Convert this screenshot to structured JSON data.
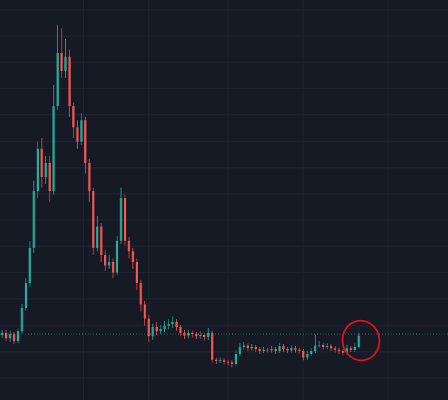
{
  "chart_data": {
    "type": "candlestick",
    "up_color": "#26a69a",
    "down_color": "#ef5350",
    "ylim": [
      0,
      565
    ],
    "open": [
      92,
      95,
      87,
      93,
      83,
      97,
      130,
      165,
      215,
      295,
      355,
      315,
      335,
      295,
      415,
      490,
      465,
      485,
      415,
      385,
      365,
      395,
      335,
      295,
      215,
      245,
      205,
      190,
      195,
      180,
      225,
      285,
      225,
      210,
      195,
      165,
      135,
      115,
      90,
      103,
      97,
      100,
      105,
      107,
      110,
      103,
      95,
      91,
      95,
      93,
      90,
      92,
      89,
      95,
      57,
      55,
      56,
      54,
      53,
      51,
      65,
      75,
      77,
      73,
      75,
      72,
      69,
      71,
      70,
      72,
      69,
      76,
      72,
      70,
      73,
      71,
      69,
      60,
      65,
      69,
      77,
      78,
      75,
      76,
      73,
      71,
      69,
      67,
      73,
      71,
      75
    ],
    "high": [
      99,
      99,
      97,
      96,
      101,
      136,
      172,
      225,
      310,
      365,
      370,
      345,
      345,
      445,
      530,
      525,
      510,
      495,
      420,
      395,
      405,
      400,
      340,
      300,
      260,
      250,
      212,
      205,
      200,
      232,
      300,
      290,
      230,
      215,
      200,
      170,
      140,
      120,
      108,
      110,
      106,
      112,
      114,
      118,
      114,
      106,
      99,
      99,
      98,
      96,
      97,
      95,
      102,
      98,
      60,
      60,
      59,
      57,
      56,
      70,
      80,
      82,
      80,
      79,
      78,
      75,
      75,
      74,
      76,
      75,
      81,
      79,
      75,
      77,
      76,
      74,
      72,
      69,
      73,
      92,
      83,
      81,
      80,
      79,
      76,
      74,
      72,
      78,
      76,
      80,
      95
    ],
    "low": [
      88,
      83,
      82,
      79,
      80,
      94,
      126,
      160,
      208,
      285,
      300,
      305,
      280,
      290,
      410,
      455,
      455,
      400,
      370,
      355,
      360,
      320,
      280,
      205,
      210,
      195,
      182,
      185,
      172,
      176,
      220,
      218,
      200,
      185,
      155,
      125,
      105,
      82,
      85,
      92,
      93,
      96,
      100,
      102,
      98,
      90,
      86,
      87,
      88,
      86,
      86,
      84,
      85,
      53,
      51,
      52,
      50,
      49,
      46,
      48,
      62,
      71,
      69,
      70,
      68,
      65,
      66,
      67,
      67,
      65,
      66,
      68,
      66,
      67,
      67,
      65,
      56,
      57,
      62,
      66,
      74,
      71,
      72,
      69,
      67,
      65,
      63,
      64,
      68,
      68,
      73
    ],
    "close": [
      95,
      87,
      93,
      83,
      97,
      130,
      165,
      215,
      295,
      355,
      315,
      335,
      295,
      415,
      490,
      465,
      485,
      415,
      385,
      365,
      395,
      335,
      295,
      215,
      245,
      205,
      190,
      195,
      180,
      225,
      285,
      225,
      210,
      195,
      165,
      135,
      115,
      90,
      103,
      97,
      100,
      105,
      107,
      110,
      103,
      95,
      91,
      95,
      93,
      90,
      92,
      89,
      95,
      57,
      55,
      56,
      54,
      53,
      51,
      65,
      75,
      77,
      73,
      75,
      72,
      69,
      71,
      70,
      72,
      69,
      76,
      72,
      70,
      73,
      71,
      69,
      60,
      65,
      69,
      77,
      78,
      75,
      76,
      73,
      71,
      69,
      67,
      73,
      71,
      75,
      91
    ]
  }
}
